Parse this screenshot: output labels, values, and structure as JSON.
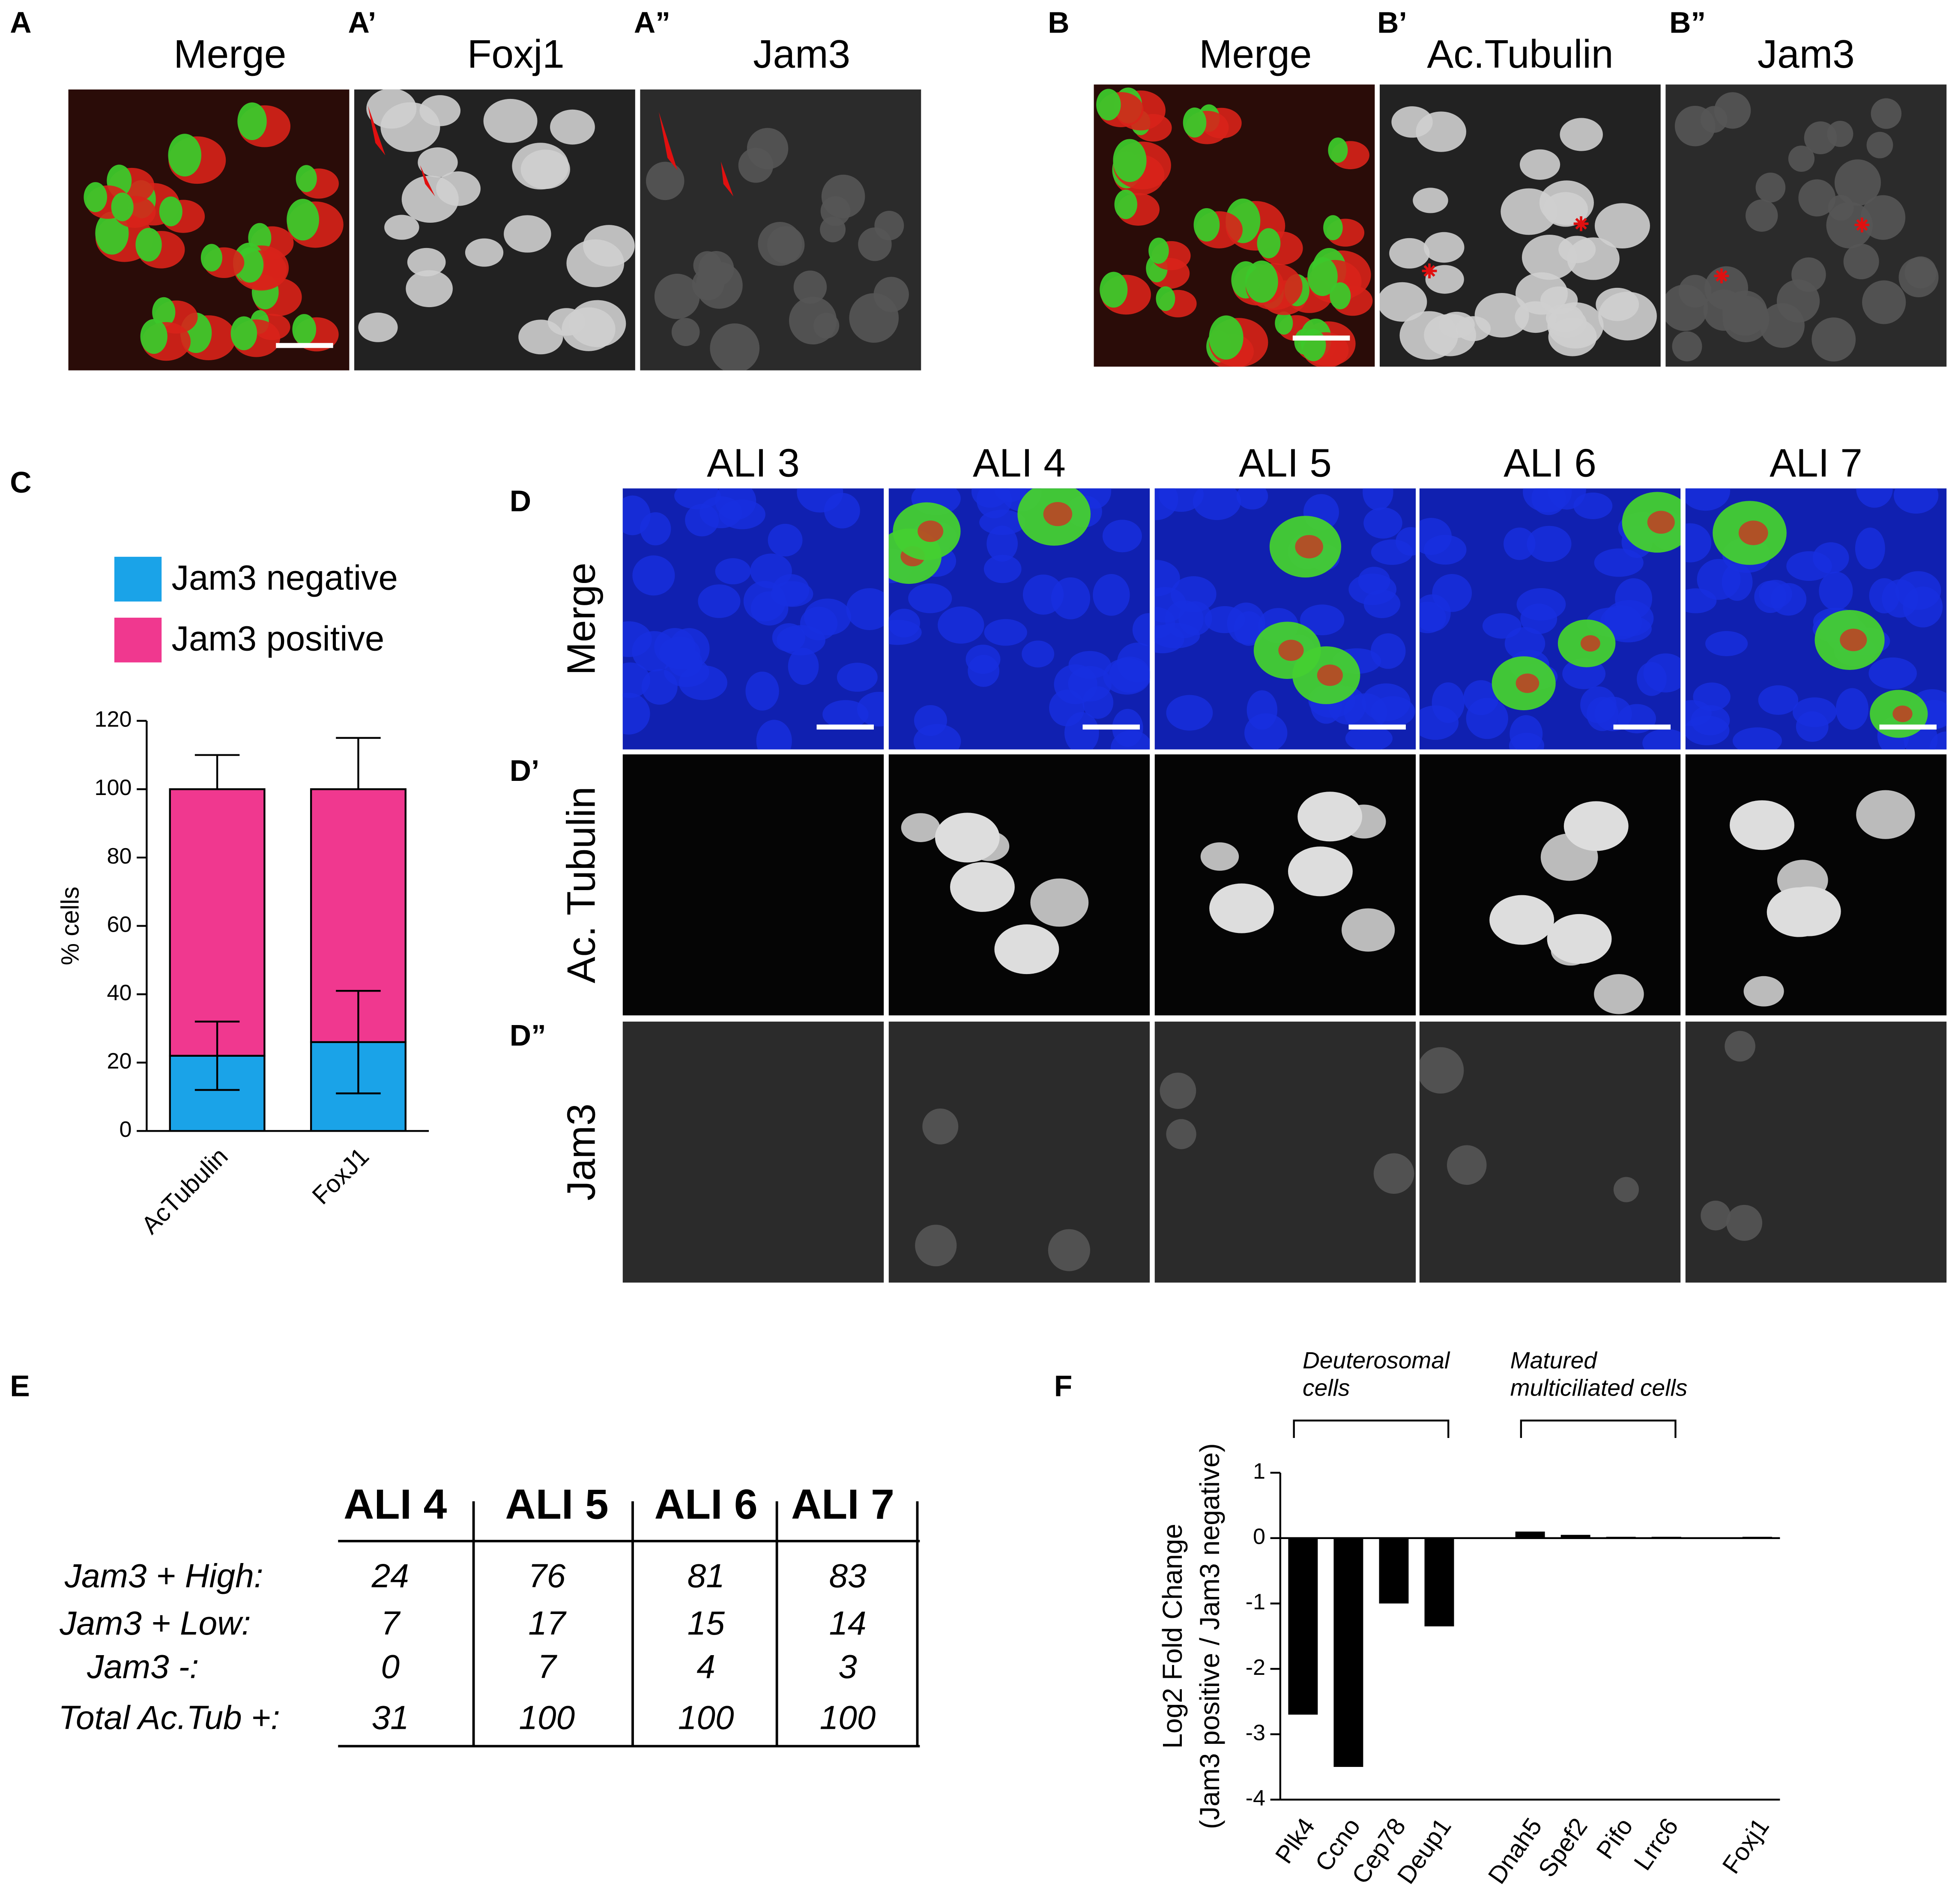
{
  "panel_labels": [
    "A",
    "A’",
    "A”",
    "B",
    "B’",
    "B”",
    "C",
    "D",
    "D’",
    "D”",
    "E",
    "F"
  ],
  "image_titles_a": [
    "Merge",
    "Foxj1",
    "Jam3"
  ],
  "image_titles_b": [
    "Merge",
    "Ac.Tubulin",
    "Jam3"
  ],
  "d_columns": [
    "ALI 3",
    "ALI 4",
    "ALI 5",
    "ALI 6",
    "ALI 7"
  ],
  "d_rows": [
    "Merge",
    "Ac. Tubulin",
    "Jam3"
  ],
  "table": {
    "header": [
      "ALI 4",
      "ALI 5",
      "ALI 6",
      "ALI 7"
    ],
    "rows": [
      {
        "label": "Jam3 + High:",
        "values": [
          24,
          76,
          81,
          83
        ]
      },
      {
        "label": "Jam3 + Low:",
        "values": [
          7,
          17,
          15,
          14
        ]
      },
      {
        "label": "Jam3 -:",
        "values": [
          0,
          7,
          4,
          3
        ]
      },
      {
        "label": "Total Ac.Tub +:",
        "values": [
          31,
          100,
          100,
          100
        ]
      }
    ]
  },
  "chart_data": [
    {
      "type": "bar",
      "stacked": true,
      "ylabel": "% cells",
      "categories": [
        "AcTubulin",
        "FoxJ1"
      ],
      "series": [
        {
          "name": "Jam3 negative",
          "color": "#1aa3e8",
          "values": [
            22,
            26
          ],
          "errors": [
            10,
            15
          ]
        },
        {
          "name": "Jam3 positive",
          "color": "#f0388f",
          "values": [
            78,
            74
          ],
          "errors": [
            10,
            15
          ]
        }
      ],
      "ylim": [
        0,
        120
      ],
      "yticks": [
        0,
        20,
        40,
        60,
        80,
        100,
        120
      ]
    },
    {
      "type": "bar",
      "ylabel": [
        "Log2 Fold Change",
        "(Jam3 positive / Jam3 negative)"
      ],
      "annotations": [
        [
          "Deuterosomal",
          "cells"
        ],
        [
          "Matured",
          "multiciliated cells"
        ]
      ],
      "categories": [
        "Plk4",
        "Ccno",
        "Cep78",
        "Deup1",
        null,
        "Dnah5",
        "Spef2",
        "Pifo",
        "Lrrc6",
        null,
        "Foxj1"
      ],
      "values": [
        -2.7,
        -3.5,
        -1.0,
        -1.35,
        null,
        0.1,
        0.05,
        0.02,
        0.02,
        null,
        0.02
      ],
      "color": "#000000",
      "ylim": [
        -4,
        1
      ],
      "yticks": [
        -4,
        -3,
        -2,
        -1,
        0,
        1
      ]
    }
  ]
}
